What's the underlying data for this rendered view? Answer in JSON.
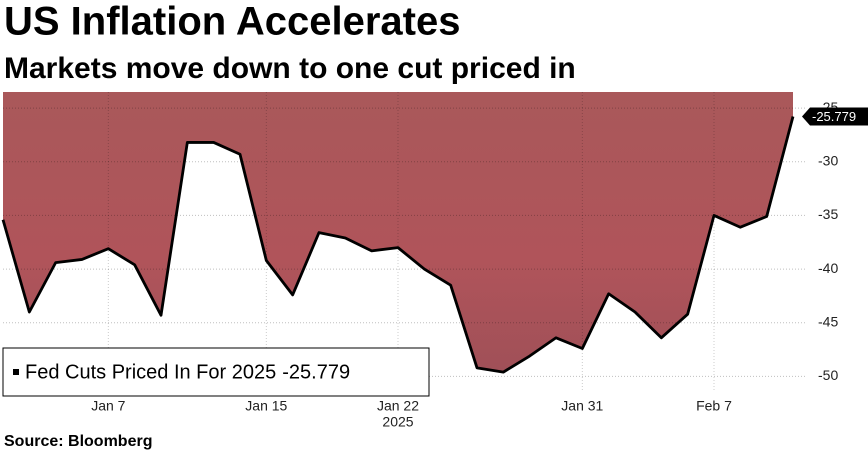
{
  "chart_data": {
    "type": "area",
    "title": "US Inflation Accelerates",
    "subtitle": "Markets move down to one cut priced in",
    "source": "Source: Bloomberg",
    "year": "2025",
    "categories": [
      null,
      null,
      null,
      null,
      "Jan 7",
      null,
      null,
      null,
      null,
      null,
      "Jan 15",
      null,
      null,
      null,
      null,
      "Jan 22",
      null,
      null,
      null,
      null,
      null,
      null,
      "Jan 31",
      null,
      null,
      null,
      null,
      "Feb 7",
      null,
      null,
      null
    ],
    "series": [
      {
        "name": "Fed Cuts Priced In For 2025",
        "color": "#000000",
        "fill": "#b0545a",
        "values": [
          -35.4,
          -44.0,
          -39.4,
          -39.1,
          -38.1,
          -39.6,
          -44.3,
          -28.2,
          -28.2,
          -29.3,
          -39.2,
          -42.4,
          -36.6,
          -37.1,
          -38.3,
          -38.0,
          -40.0,
          -41.5,
          -49.2,
          -49.6,
          -48.1,
          -46.4,
          -47.4,
          -42.3,
          -44.0,
          -46.4,
          -44.2,
          -35.0,
          -36.1,
          -35.1,
          -25.779
        ]
      }
    ],
    "ylim": [
      -50.8,
      -23.5
    ],
    "yticks": [
      -50,
      -45,
      -40,
      -35,
      -30,
      -25
    ],
    "grid": true
  }
}
